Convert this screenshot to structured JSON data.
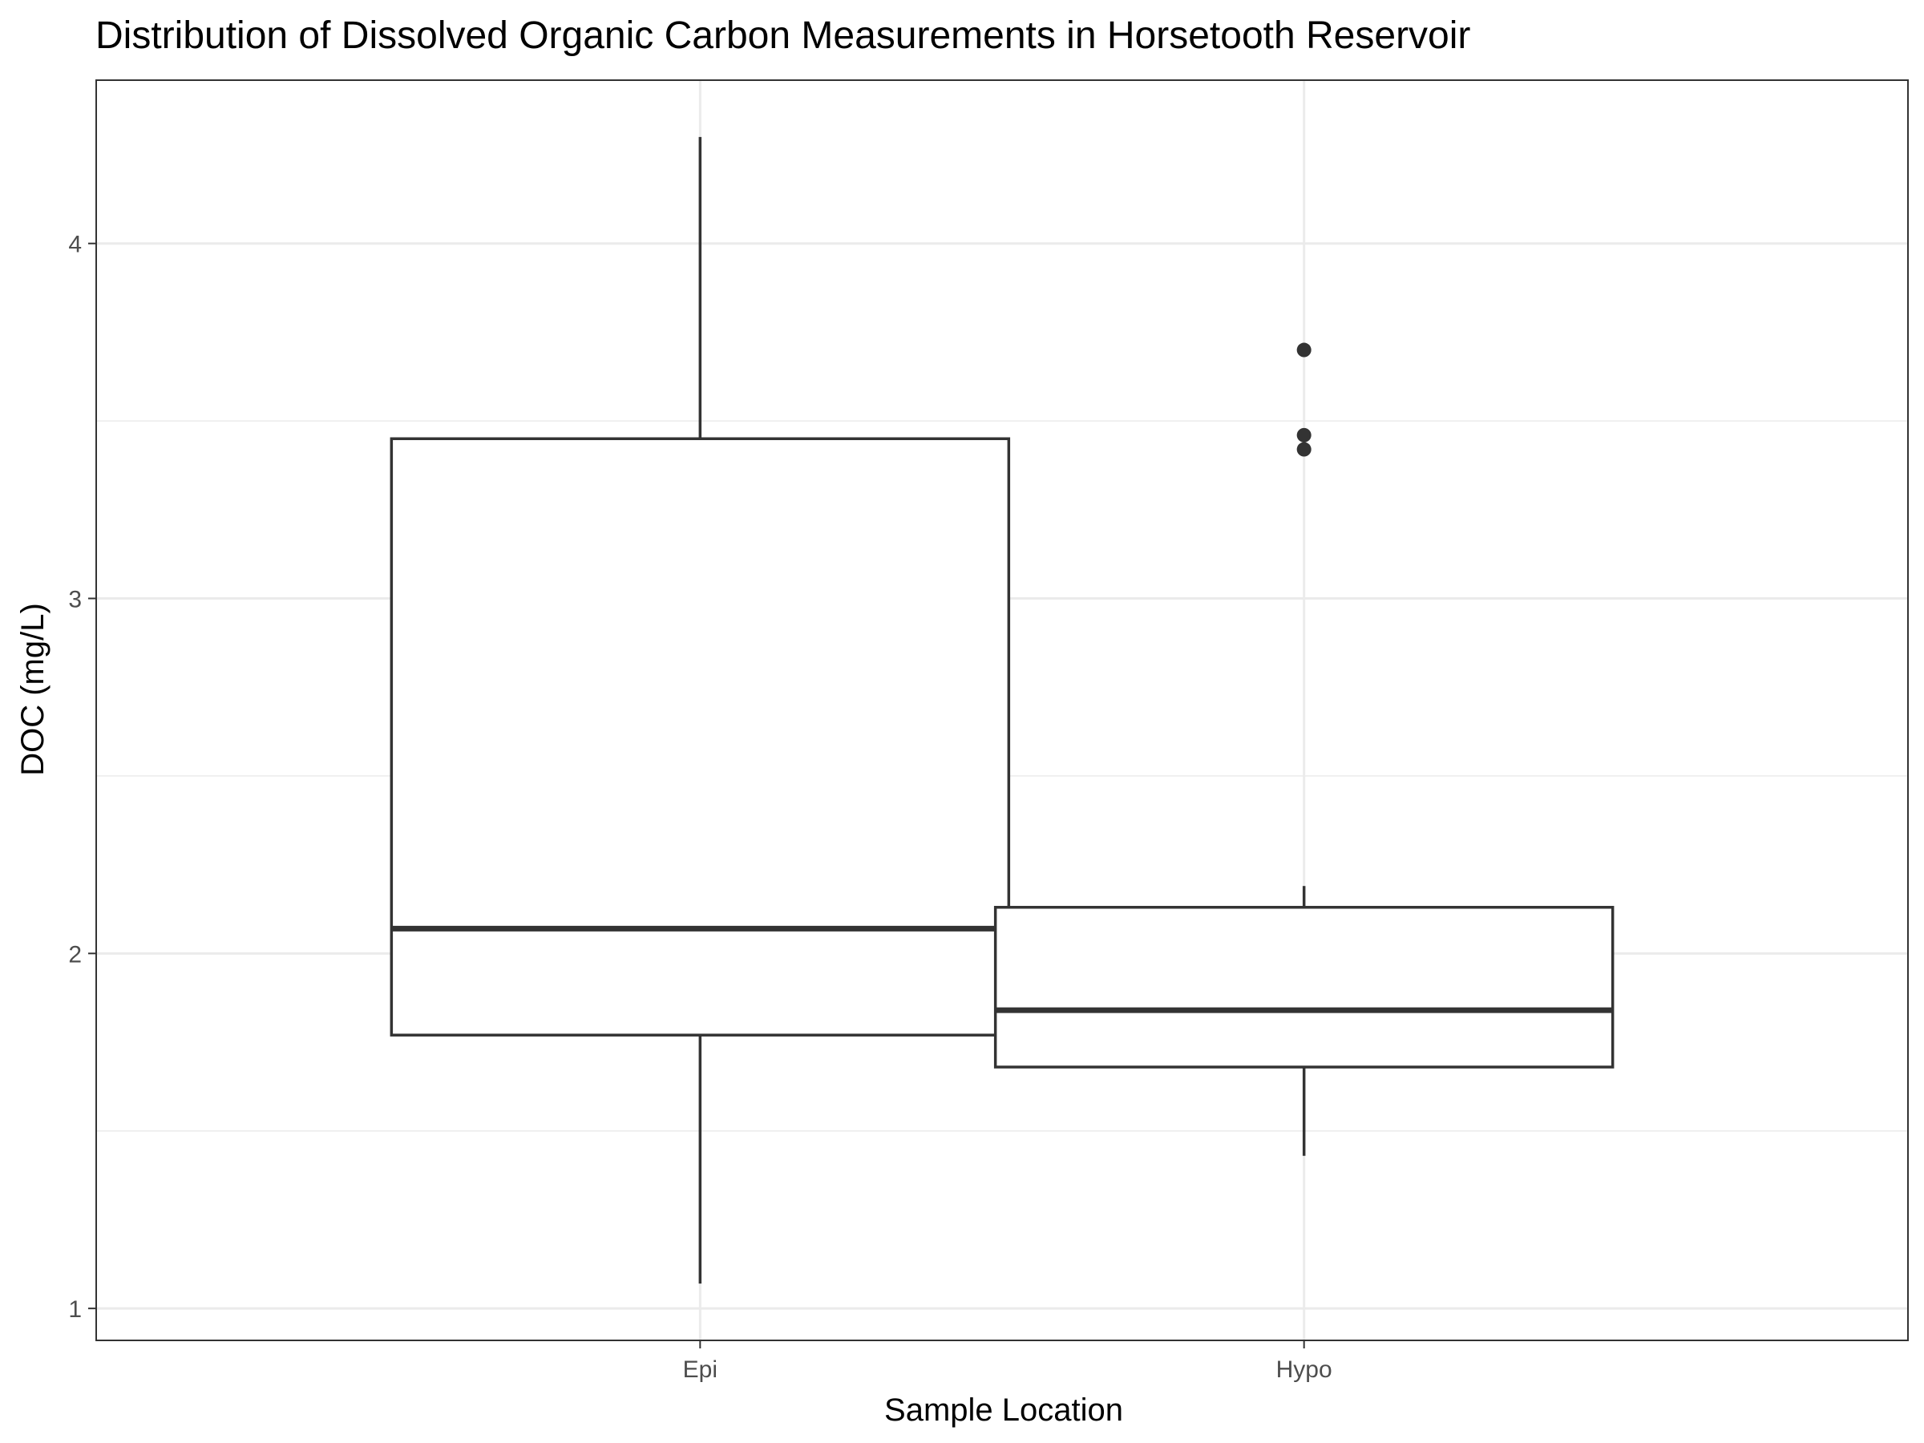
{
  "chart_data": {
    "type": "box",
    "title": "Distribution of Dissolved Organic Carbon Measurements in Horsetooth Reservoir",
    "xlabel": "Sample Location",
    "ylabel": "DOC (mg/L)",
    "categories": [
      "Epi",
      "Hypo"
    ],
    "ylim": [
      0.91,
      4.46
    ],
    "yticks": [
      1,
      2,
      3,
      4
    ],
    "grid": true,
    "boxes": [
      {
        "category": "Epi",
        "whisker_low": 1.07,
        "q1": 1.77,
        "median": 2.07,
        "q3": 3.45,
        "whisker_high": 4.3,
        "outliers": []
      },
      {
        "category": "Hypo",
        "whisker_low": 1.43,
        "q1": 1.68,
        "median": 1.84,
        "q3": 2.13,
        "whisker_high": 2.19,
        "outliers": [
          3.7,
          3.46,
          3.42
        ]
      }
    ],
    "colors": {
      "line": "#333333",
      "grid": "#ebebeb",
      "panel_border": "#333333",
      "background": "#ffffff"
    }
  }
}
